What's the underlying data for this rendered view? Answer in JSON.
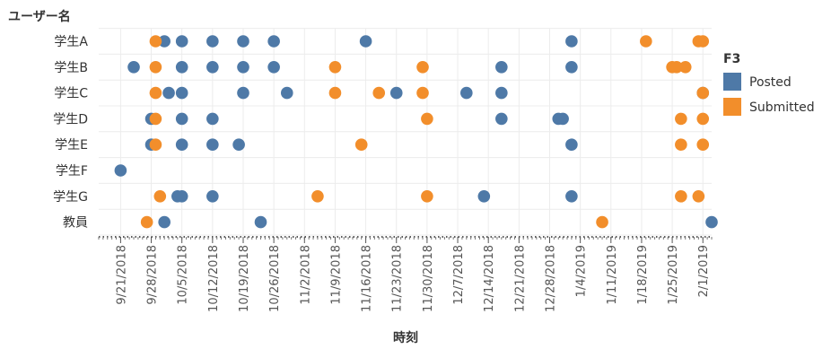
{
  "chart_data": {
    "type": "scatter",
    "title": "",
    "row_axis_title": "ユーザー名",
    "xlabel": "時刻",
    "rows": [
      "学生A",
      "学生B",
      "学生C",
      "学生D",
      "学生E",
      "学生F",
      "学生G",
      "教員"
    ],
    "x_ticks": [
      "9/21/2018",
      "9/28/2018",
      "10/5/2018",
      "10/12/2018",
      "10/19/2018",
      "10/26/2018",
      "11/2/2018",
      "11/9/2018",
      "11/16/2018",
      "11/23/2018",
      "11/30/2018",
      "12/7/2018",
      "12/14/2018",
      "12/21/2018",
      "12/28/2018",
      "1/4/2019",
      "1/11/2019",
      "1/18/2019",
      "1/25/2019",
      "2/1/2019"
    ],
    "xlim": [
      "2018-09-16",
      "2019-02-03"
    ],
    "grid": true,
    "legend": {
      "title": "F3",
      "position": "right"
    },
    "series": [
      {
        "name": "Posted",
        "color": "#4e79a7",
        "points": [
          {
            "row": "学生A",
            "x": "2018-10-01"
          },
          {
            "row": "学生A",
            "x": "2018-10-05"
          },
          {
            "row": "学生A",
            "x": "2018-10-12"
          },
          {
            "row": "学生A",
            "x": "2018-10-19"
          },
          {
            "row": "学生A",
            "x": "2018-10-26"
          },
          {
            "row": "学生A",
            "x": "2018-11-16"
          },
          {
            "row": "学生A",
            "x": "2019-01-02"
          },
          {
            "row": "学生B",
            "x": "2018-09-24"
          },
          {
            "row": "学生B",
            "x": "2018-10-05"
          },
          {
            "row": "学生B",
            "x": "2018-10-12"
          },
          {
            "row": "学生B",
            "x": "2018-10-19"
          },
          {
            "row": "学生B",
            "x": "2018-10-26"
          },
          {
            "row": "学生B",
            "x": "2018-12-17"
          },
          {
            "row": "学生B",
            "x": "2019-01-02"
          },
          {
            "row": "学生C",
            "x": "2018-10-02"
          },
          {
            "row": "学生C",
            "x": "2018-10-05"
          },
          {
            "row": "学生C",
            "x": "2018-10-19"
          },
          {
            "row": "学生C",
            "x": "2018-10-29"
          },
          {
            "row": "学生C",
            "x": "2018-11-23"
          },
          {
            "row": "学生C",
            "x": "2018-12-09"
          },
          {
            "row": "学生C",
            "x": "2018-12-17"
          },
          {
            "row": "学生C",
            "x": "2019-02-01"
          },
          {
            "row": "学生D",
            "x": "2018-09-28"
          },
          {
            "row": "学生D",
            "x": "2018-10-05"
          },
          {
            "row": "学生D",
            "x": "2018-10-12"
          },
          {
            "row": "学生D",
            "x": "2018-12-17"
          },
          {
            "row": "学生D",
            "x": "2018-12-30"
          },
          {
            "row": "学生D",
            "x": "2018-12-31"
          },
          {
            "row": "学生E",
            "x": "2018-09-28"
          },
          {
            "row": "学生E",
            "x": "2018-10-05"
          },
          {
            "row": "学生E",
            "x": "2018-10-12"
          },
          {
            "row": "学生E",
            "x": "2018-10-18"
          },
          {
            "row": "学生E",
            "x": "2019-01-02"
          },
          {
            "row": "学生F",
            "x": "2018-09-21"
          },
          {
            "row": "学生G",
            "x": "2018-10-04"
          },
          {
            "row": "学生G",
            "x": "2018-10-05"
          },
          {
            "row": "学生G",
            "x": "2018-10-12"
          },
          {
            "row": "学生G",
            "x": "2018-12-13"
          },
          {
            "row": "学生G",
            "x": "2019-01-02"
          },
          {
            "row": "教員",
            "x": "2018-10-01"
          },
          {
            "row": "教員",
            "x": "2018-10-23"
          },
          {
            "row": "教員",
            "x": "2019-02-03"
          }
        ]
      },
      {
        "name": "Submitted",
        "color": "#f28e2b",
        "points": [
          {
            "row": "学生A",
            "x": "2018-09-29"
          },
          {
            "row": "学生A",
            "x": "2019-01-19"
          },
          {
            "row": "学生A",
            "x": "2019-01-31"
          },
          {
            "row": "学生A",
            "x": "2019-02-01"
          },
          {
            "row": "学生B",
            "x": "2018-09-29"
          },
          {
            "row": "学生B",
            "x": "2018-11-09"
          },
          {
            "row": "学生B",
            "x": "2018-11-29"
          },
          {
            "row": "学生B",
            "x": "2019-01-25"
          },
          {
            "row": "学生B",
            "x": "2019-01-26"
          },
          {
            "row": "学生B",
            "x": "2019-01-28"
          },
          {
            "row": "学生C",
            "x": "2018-09-29"
          },
          {
            "row": "学生C",
            "x": "2018-11-09"
          },
          {
            "row": "学生C",
            "x": "2018-11-19"
          },
          {
            "row": "学生C",
            "x": "2018-11-29"
          },
          {
            "row": "学生C",
            "x": "2019-02-01"
          },
          {
            "row": "学生D",
            "x": "2018-09-29"
          },
          {
            "row": "学生D",
            "x": "2018-11-30"
          },
          {
            "row": "学生D",
            "x": "2019-01-27"
          },
          {
            "row": "学生D",
            "x": "2019-02-01"
          },
          {
            "row": "学生E",
            "x": "2018-09-29"
          },
          {
            "row": "学生E",
            "x": "2018-11-15"
          },
          {
            "row": "学生E",
            "x": "2019-01-27"
          },
          {
            "row": "学生E",
            "x": "2019-02-01"
          },
          {
            "row": "学生G",
            "x": "2018-09-30"
          },
          {
            "row": "学生G",
            "x": "2018-11-05"
          },
          {
            "row": "学生G",
            "x": "2018-11-30"
          },
          {
            "row": "学生G",
            "x": "2019-01-27"
          },
          {
            "row": "学生G",
            "x": "2019-01-31"
          },
          {
            "row": "教員",
            "x": "2018-09-27"
          },
          {
            "row": "教員",
            "x": "2019-01-09"
          }
        ]
      }
    ]
  }
}
